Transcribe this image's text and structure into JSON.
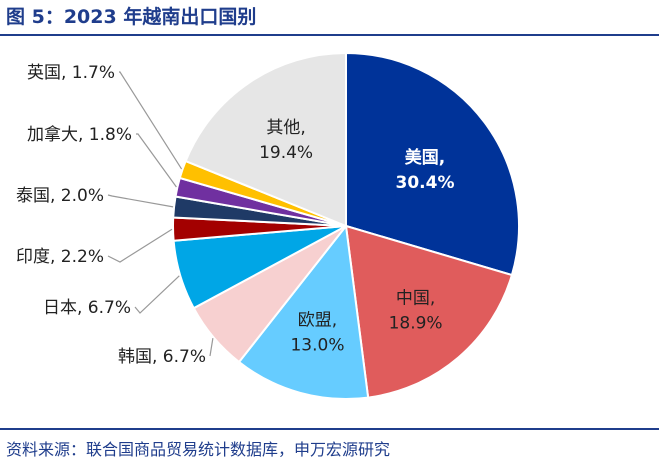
{
  "figure": {
    "title": "图 5：2023 年越南出口国别",
    "source": "资料来源：联合国商品贸易统计数据库，申万宏源研究"
  },
  "chart_data": {
    "type": "pie",
    "title": "",
    "slices": [
      {
        "label": "美国",
        "value": 30.4,
        "display": "30.4%",
        "color": "#003399",
        "label_color": "#ffffff",
        "bold": true,
        "label_mode": "inside"
      },
      {
        "label": "中国",
        "value": 18.9,
        "display": "18.9%",
        "color": "#e05c5c",
        "label_color": "#222222",
        "bold": false,
        "label_mode": "inside"
      },
      {
        "label": "欧盟",
        "value": 13.0,
        "display": "13.0%",
        "color": "#66ccff",
        "label_color": "#222222",
        "bold": false,
        "label_mode": "inside"
      },
      {
        "label": "韩国",
        "value": 6.7,
        "display": "6.7%",
        "color": "#f7d0d0",
        "label_color": "#222222",
        "bold": false,
        "label_mode": "outside"
      },
      {
        "label": "日本",
        "value": 6.7,
        "display": "6.7%",
        "color": "#00a6e6",
        "label_color": "#222222",
        "bold": false,
        "label_mode": "outside"
      },
      {
        "label": "印度",
        "value": 2.2,
        "display": "2.2%",
        "color": "#a30000",
        "label_color": "#222222",
        "bold": false,
        "label_mode": "outside"
      },
      {
        "label": "泰国",
        "value": 2.0,
        "display": "2.0%",
        "color": "#1f3a66",
        "label_color": "#222222",
        "bold": false,
        "label_mode": "outside"
      },
      {
        "label": "加拿大",
        "value": 1.8,
        "display": "1.8%",
        "color": "#7030a0",
        "label_color": "#222222",
        "bold": false,
        "label_mode": "outside"
      },
      {
        "label": "英国",
        "value": 1.7,
        "display": "1.7%",
        "color": "#ffc000",
        "label_color": "#222222",
        "bold": false,
        "label_mode": "outside"
      },
      {
        "label": "其他",
        "value": 19.4,
        "display": "19.4%",
        "color": "#e6e6e6",
        "label_color": "#222222",
        "bold": false,
        "label_mode": "inside"
      }
    ],
    "start": "12 o'clock",
    "direction": "clockwise",
    "legend": "none"
  }
}
